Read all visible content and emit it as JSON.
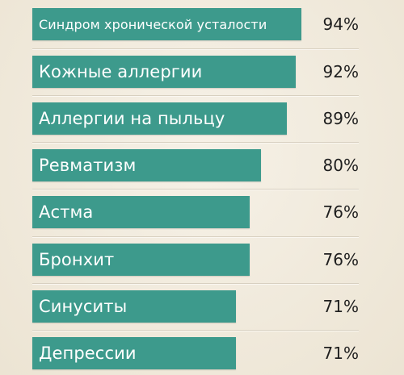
{
  "chart_data": {
    "type": "bar",
    "orientation": "horizontal",
    "categories": [
      "Синдром хронической усталости",
      "Кожные аллергии",
      "Аллергии на пыльцу",
      "Ревматизм",
      "Астма",
      "Бронхит",
      "Синуситы",
      "Депрессии"
    ],
    "values": [
      94,
      92,
      89,
      80,
      76,
      76,
      71,
      71
    ],
    "value_labels": [
      "94%",
      "92%",
      "89%",
      "80%",
      "76%",
      "76%",
      "71%",
      "71%"
    ],
    "colors": {
      "bar": "#3d9a8c",
      "bar_text": "#ffffff",
      "value_text": "#1f1f1f",
      "background": "#f1ebdf"
    },
    "grid": false
  }
}
